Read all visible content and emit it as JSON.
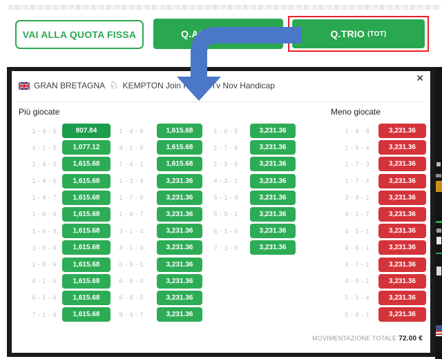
{
  "toolbar": {
    "quota_fissa_label": "VAI ALLA QUOTA FISSA",
    "accoppiata_label": "Q.ACCOPPIATA",
    "trio_label": "Q.TRIO",
    "trio_suffix": "(TOT)"
  },
  "icons": {
    "close": "✕",
    "horse": "♘"
  },
  "modal": {
    "country": "GRAN BRETAGNA",
    "race_name": "KEMPTON Join Racing Tv Nov Handicap",
    "most_played_label": "Più giocate",
    "least_played_label": "Meno giocate",
    "footer_label": "MOVIMENTAZIONE TOTALE",
    "footer_value": "72.00 €",
    "columns": [
      {
        "group": "most-played",
        "type": "green",
        "rows": [
          {
            "combo": "1 - 4 - 5",
            "odds": "807.84",
            "dark": true
          },
          {
            "combo": "4 - 1 - 5",
            "odds": "1,077.12"
          },
          {
            "combo": "1 - 4 - 3",
            "odds": "1,615.68"
          },
          {
            "combo": "1 - 4 - 6",
            "odds": "1,615.68"
          },
          {
            "combo": "1 - 4 - 7",
            "odds": "1,615.68"
          },
          {
            "combo": "1 - 6 - 4",
            "odds": "1,615.68"
          },
          {
            "combo": "1 - 6 - 9",
            "odds": "1,615.68"
          },
          {
            "combo": "1 - 9 - 4",
            "odds": "1,615.68"
          },
          {
            "combo": "1 - 9 - 6",
            "odds": "1,615.68"
          },
          {
            "combo": "4 - 1 - 6",
            "odds": "1,615.68"
          },
          {
            "combo": "6 - 1 - 4",
            "odds": "1,615.68"
          },
          {
            "combo": "7 - 1 - 4",
            "odds": "1,615.68"
          }
        ]
      },
      {
        "group": "most-played",
        "type": "green",
        "rows": [
          {
            "combo": "1 - 4 - 9",
            "odds": "1,615.68"
          },
          {
            "combo": "4 - 1 - 9",
            "odds": "1,615.68"
          },
          {
            "combo": "7 - 4 - 1",
            "odds": "1,615.68"
          },
          {
            "combo": "1 - 3 - 4",
            "odds": "3,231.36"
          },
          {
            "combo": "1 - 7 - 9",
            "odds": "3,231.36"
          },
          {
            "combo": "1 - 9 - 7",
            "odds": "3,231.36"
          },
          {
            "combo": "3 - 1 - 4",
            "odds": "3,231.36"
          },
          {
            "combo": "4 - 1 - 3",
            "odds": "3,231.36"
          },
          {
            "combo": "6 - 9 - 1",
            "odds": "3,231.36"
          },
          {
            "combo": "6 - 9 - 4",
            "odds": "3,231.36"
          },
          {
            "combo": "6 - 9 - 5",
            "odds": "3,231.36"
          },
          {
            "combo": "8 - 4 - 7",
            "odds": "3,231.36"
          }
        ]
      },
      {
        "group": "most-played",
        "type": "green",
        "rows": [
          {
            "combo": "1 - 6 - 5",
            "odds": "3,231.36"
          },
          {
            "combo": "1 - 7 - 6",
            "odds": "3,231.36"
          },
          {
            "combo": "1 - 9 - 5",
            "odds": "3,231.36"
          },
          {
            "combo": "4 - 3 - 1",
            "odds": "3,231.36"
          },
          {
            "combo": "5 - 1 - 9",
            "odds": "3,231.36"
          },
          {
            "combo": "5 - 9 - 1",
            "odds": "3,231.36"
          },
          {
            "combo": "6 - 1 - 9",
            "odds": "3,231.36"
          },
          {
            "combo": "7 - 1 - 6",
            "odds": "3,231.36"
          }
        ]
      },
      {
        "group": "least-played",
        "type": "red",
        "rows": [
          {
            "combo": "1 - 4 - 8",
            "odds": "3,231.36"
          },
          {
            "combo": "1 - 5 - 4",
            "odds": "3,231.36"
          },
          {
            "combo": "1 - 7 - 3",
            "odds": "3,231.36"
          },
          {
            "combo": "1 - 7 - 4",
            "odds": "3,231.36"
          },
          {
            "combo": "3 - 4 - 1",
            "odds": "3,231.36"
          },
          {
            "combo": "4 - 1 - 7",
            "odds": "3,231.36"
          },
          {
            "combo": "4 - 5 - 1",
            "odds": "3,231.36"
          },
          {
            "combo": "4 - 6 - 1",
            "odds": "3,231.36"
          },
          {
            "combo": "4 - 7 - 1",
            "odds": "3,231.36"
          },
          {
            "combo": "4 - 9 - 1",
            "odds": "3,231.36"
          },
          {
            "combo": "5 - 1 - 4",
            "odds": "3,231.36"
          },
          {
            "combo": "5 - 4 - 1",
            "odds": "3,231.36"
          }
        ]
      }
    ]
  },
  "colors": {
    "green_button": "#2aa850",
    "odds_green": "#2dac56",
    "odds_green_dark": "#1b9d4b",
    "odds_red": "#d43339",
    "highlight_outline_red": "#ed1f24",
    "arrow_blue": "#4a77c8",
    "backdrop": "#1b1b1b"
  }
}
